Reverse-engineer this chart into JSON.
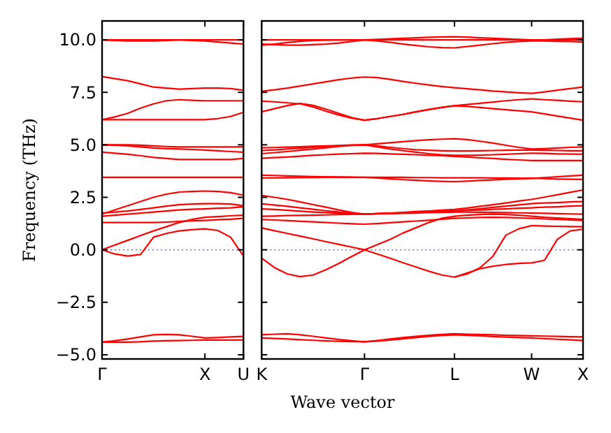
{
  "chart_data": [
    {
      "type": "line",
      "ylabel": "Frequency (THz)",
      "color": "#ff0000",
      "ylim": [
        -5.2,
        10.9
      ],
      "categories": [
        "Γ",
        null,
        null,
        null,
        null,
        null,
        null,
        null,
        "X",
        null,
        null,
        "U"
      ],
      "yticks": [
        {
          "value": -5,
          "label": "−5.0"
        },
        {
          "value": -2.5,
          "label": "−2.5"
        },
        {
          "value": 0,
          "label": "0.0"
        },
        {
          "value": 2.5,
          "label": "2.5"
        },
        {
          "value": 5,
          "label": "5.0"
        },
        {
          "value": 7.5,
          "label": "7.5"
        },
        {
          "value": 10,
          "label": "10.0"
        }
      ],
      "ref_lines": [
        {
          "axis": "y",
          "value": 0,
          "color": "#6b6bff",
          "line_style": "dotted"
        }
      ],
      "series": [
        {
          "values": [
            10,
            10,
            10,
            10,
            10,
            10,
            10,
            10,
            10,
            10,
            10,
            10
          ]
        },
        {
          "values": [
            10,
            9.97,
            9.95,
            9.95,
            9.95,
            9.97,
            10,
            9.97,
            9.95,
            9.9,
            9.85,
            9.8
          ]
        },
        {
          "values": [
            8.25,
            8.15,
            8.05,
            7.9,
            7.75,
            7.7,
            7.65,
            7.68,
            7.7,
            7.7,
            7.68,
            7.6
          ]
        },
        {
          "values": [
            6.2,
            6.33,
            6.5,
            6.75,
            6.95,
            7.1,
            7.15,
            7.12,
            7.1,
            7.1,
            7.1,
            7.1
          ]
        },
        {
          "values": [
            6.2,
            6.2,
            6.2,
            6.2,
            6.2,
            6.2,
            6.2,
            6.2,
            6.2,
            6.25,
            6.35,
            6.55
          ]
        },
        {
          "values": [
            5.0,
            5.0,
            5.0,
            4.98,
            4.95,
            4.92,
            4.9,
            4.9,
            4.9,
            4.9,
            4.9,
            4.9
          ]
        },
        {
          "values": [
            5.0,
            4.98,
            4.95,
            4.9,
            4.85,
            4.82,
            4.8,
            4.78,
            4.75,
            4.72,
            4.68,
            4.65
          ]
        },
        {
          "values": [
            4.65,
            4.6,
            4.55,
            4.48,
            4.4,
            4.35,
            4.3,
            4.3,
            4.3,
            4.3,
            4.3,
            4.35
          ]
        },
        {
          "values": [
            3.45,
            3.45,
            3.45,
            3.45,
            3.45,
            3.45,
            3.45,
            3.45,
            3.45,
            3.45,
            3.45,
            3.45
          ]
        },
        {
          "values": [
            1.7,
            1.9,
            2.1,
            2.3,
            2.5,
            2.65,
            2.75,
            2.78,
            2.8,
            2.78,
            2.72,
            2.6
          ]
        },
        {
          "values": [
            1.75,
            1.8,
            1.85,
            1.92,
            2.0,
            2.08,
            2.15,
            2.18,
            2.2,
            2.2,
            2.18,
            2.1
          ]
        },
        {
          "values": [
            1.6,
            1.65,
            1.7,
            1.75,
            1.8,
            1.85,
            1.9,
            1.93,
            1.95,
            1.98,
            2.0,
            2.05
          ]
        },
        {
          "values": [
            1.3,
            1.3,
            1.3,
            1.3,
            1.3,
            1.32,
            1.35,
            1.38,
            1.4,
            1.43,
            1.46,
            1.5
          ]
        },
        {
          "values": [
            0,
            0.23,
            0.45,
            0.68,
            0.9,
            1.1,
            1.3,
            1.45,
            1.55,
            1.58,
            1.62,
            1.65
          ]
        },
        {
          "values": [
            0,
            -0.2,
            -0.3,
            -0.22,
            0.6,
            0.78,
            0.9,
            0.96,
            1.0,
            0.92,
            0.6,
            -0.3
          ]
        },
        {
          "values": [
            -4.4,
            -4.33,
            -4.25,
            -4.15,
            -4.05,
            -4.03,
            -4.05,
            -4.12,
            -4.2,
            -4.18,
            -4.15,
            -4.12
          ]
        },
        {
          "values": [
            -4.4,
            -4.4,
            -4.4,
            -4.38,
            -4.35,
            -4.33,
            -4.32,
            -4.31,
            -4.3,
            -4.3,
            -4.3,
            -4.3
          ]
        }
      ]
    },
    {
      "type": "line",
      "xlabel": "Wave vector",
      "color": "#ff0000",
      "ylim": [
        -5.2,
        10.9
      ],
      "tick_labels": "x",
      "categories": [
        "K",
        null,
        null,
        null,
        null,
        null,
        null,
        null,
        "Γ",
        null,
        null,
        null,
        null,
        null,
        null,
        "L",
        null,
        null,
        null,
        null,
        null,
        "W",
        null,
        null,
        null,
        "X"
      ],
      "yticks": [
        {
          "value": -5,
          "label": null
        },
        {
          "value": -2.5,
          "label": null
        },
        {
          "value": 0,
          "label": null
        },
        {
          "value": 2.5,
          "label": null
        },
        {
          "value": 5,
          "label": null
        },
        {
          "value": 7.5,
          "label": null
        },
        {
          "value": 10,
          "label": null
        }
      ],
      "ref_lines": [
        {
          "axis": "y",
          "value": 0,
          "color": "#6b6bff",
          "line_style": "dotted"
        }
      ],
      "series": [
        {
          "values": [
            10,
            10,
            10,
            10,
            10,
            10,
            10,
            10,
            10,
            10,
            10,
            10,
            10,
            10,
            10,
            10,
            10,
            10,
            10,
            10,
            10,
            10,
            10,
            10,
            10,
            10
          ]
        },
        {
          "values": [
            9.8,
            9.77,
            9.75,
            9.75,
            9.77,
            9.8,
            9.85,
            9.92,
            10,
            10.02,
            10.05,
            10.07,
            10.1,
            10.12,
            10.14,
            10.15,
            10.13,
            10.1,
            10.07,
            10.05,
            10.02,
            10,
            10,
            10.03,
            10.06,
            10.08
          ]
        },
        {
          "values": [
            9.75,
            9.8,
            9.87,
            9.93,
            9.97,
            9.99,
            10,
            10,
            10,
            9.95,
            9.88,
            9.8,
            9.73,
            9.67,
            9.63,
            9.62,
            9.68,
            9.75,
            9.82,
            9.88,
            9.92,
            9.95,
            9.95,
            9.93,
            9.92,
            9.9
          ]
        },
        {
          "values": [
            7.55,
            7.62,
            7.7,
            7.8,
            7.9,
            8.0,
            8.1,
            8.18,
            8.23,
            8.2,
            8.12,
            8.02,
            7.93,
            7.85,
            7.78,
            7.72,
            7.67,
            7.62,
            7.56,
            7.52,
            7.48,
            7.45,
            7.52,
            7.6,
            7.68,
            7.75
          ]
        },
        {
          "values": [
            7.08,
            7.05,
            7.0,
            6.95,
            6.8,
            6.6,
            6.42,
            6.27,
            6.17,
            6.25,
            6.35,
            6.45,
            6.57,
            6.68,
            6.78,
            6.86,
            6.92,
            6.98,
            7.04,
            7.1,
            7.15,
            7.19,
            7.15,
            7.12,
            7.08,
            7.05
          ]
        },
        {
          "values": [
            6.57,
            6.72,
            6.87,
            6.97,
            6.88,
            6.7,
            6.5,
            6.3,
            6.17,
            6.25,
            6.35,
            6.45,
            6.57,
            6.68,
            6.78,
            6.86,
            6.83,
            6.78,
            6.72,
            6.67,
            6.62,
            6.57,
            6.47,
            6.37,
            6.27,
            6.17
          ]
        },
        {
          "values": [
            4.86,
            4.87,
            4.89,
            4.91,
            4.93,
            4.95,
            4.97,
            4.99,
            5.0,
            5.05,
            5.1,
            5.15,
            5.2,
            5.24,
            5.27,
            5.29,
            5.25,
            5.17,
            5.08,
            4.98,
            4.88,
            4.8,
            4.82,
            4.85,
            4.88,
            4.9
          ]
        },
        {
          "values": [
            4.73,
            4.76,
            4.8,
            4.84,
            4.88,
            4.92,
            4.95,
            4.98,
            5.0,
            4.95,
            4.88,
            4.82,
            4.77,
            4.74,
            4.72,
            4.71,
            4.71,
            4.72,
            4.73,
            4.74,
            4.75,
            4.75,
            4.74,
            4.73,
            4.72,
            4.72
          ]
        },
        {
          "values": [
            4.58,
            4.63,
            4.68,
            4.74,
            4.8,
            4.86,
            4.92,
            4.97,
            5.0,
            4.9,
            4.8,
            4.72,
            4.65,
            4.58,
            4.53,
            4.5,
            4.5,
            4.51,
            4.53,
            4.55,
            4.58,
            4.6,
            4.59,
            4.57,
            4.56,
            4.55
          ]
        },
        {
          "values": [
            4.36,
            4.39,
            4.42,
            4.46,
            4.5,
            4.53,
            4.56,
            4.58,
            4.6,
            4.59,
            4.57,
            4.55,
            4.53,
            4.5,
            4.48,
            4.45,
            4.42,
            4.38,
            4.35,
            4.31,
            4.28,
            4.25,
            4.25,
            4.25,
            4.25,
            4.25
          ]
        },
        {
          "values": [
            3.55,
            3.54,
            3.52,
            3.5,
            3.49,
            3.48,
            3.47,
            3.46,
            3.45,
            3.42,
            3.38,
            3.34,
            3.31,
            3.28,
            3.26,
            3.25,
            3.27,
            3.3,
            3.33,
            3.36,
            3.38,
            3.4,
            3.44,
            3.48,
            3.52,
            3.55
          ]
        },
        {
          "values": [
            3.42,
            3.43,
            3.43,
            3.44,
            3.44,
            3.45,
            3.45,
            3.45,
            3.45,
            3.45,
            3.45,
            3.45,
            3.44,
            3.44,
            3.43,
            3.43,
            3.43,
            3.43,
            3.42,
            3.42,
            3.41,
            3.41,
            3.39,
            3.37,
            3.36,
            3.35
          ]
        },
        {
          "values": [
            2.59,
            2.5,
            2.4,
            2.28,
            2.15,
            2.03,
            1.9,
            1.78,
            1.7,
            1.72,
            1.75,
            1.78,
            1.82,
            1.85,
            1.89,
            1.92,
            1.99,
            2.07,
            2.15,
            2.23,
            2.32,
            2.4,
            2.51,
            2.62,
            2.74,
            2.85
          ]
        },
        {
          "values": [
            2.19,
            2.13,
            2.07,
            2.0,
            1.93,
            1.86,
            1.8,
            1.74,
            1.7,
            1.72,
            1.74,
            1.76,
            1.78,
            1.8,
            1.83,
            1.85,
            1.9,
            1.96,
            2.02,
            2.08,
            2.14,
            2.2,
            2.23,
            2.25,
            2.28,
            2.3
          ]
        },
        {
          "values": [
            1.95,
            1.92,
            1.88,
            1.84,
            1.8,
            1.77,
            1.75,
            1.72,
            1.7,
            1.72,
            1.74,
            1.76,
            1.78,
            1.8,
            1.83,
            1.85,
            1.88,
            1.9,
            1.93,
            1.95,
            1.98,
            2.0,
            2.03,
            2.05,
            2.08,
            2.1
          ]
        },
        {
          "values": [
            1.6,
            1.61,
            1.63,
            1.64,
            1.65,
            1.66,
            1.68,
            1.69,
            1.7,
            1.71,
            1.72,
            1.74,
            1.75,
            1.77,
            1.78,
            1.8,
            1.8,
            1.79,
            1.78,
            1.77,
            1.76,
            1.75,
            1.74,
            1.72,
            1.71,
            1.7
          ]
        },
        {
          "values": [
            1.44,
            1.42,
            1.39,
            1.36,
            1.33,
            1.3,
            1.27,
            1.24,
            1.22,
            1.25,
            1.29,
            1.33,
            1.37,
            1.41,
            1.46,
            1.5,
            1.52,
            1.54,
            1.55,
            1.54,
            1.52,
            1.5,
            1.47,
            1.45,
            1.42,
            1.4
          ]
        },
        {
          "values": [
            1.04,
            0.91,
            0.78,
            0.65,
            0.52,
            0.39,
            0.26,
            0.13,
            0,
            0.25,
            0.5,
            0.8,
            1.05,
            1.3,
            1.5,
            1.6,
            1.65,
            1.68,
            1.7,
            1.68,
            1.65,
            1.6,
            1.55,
            1.52,
            1.48,
            1.45
          ]
        },
        {
          "values": [
            -0.4,
            -0.85,
            -1.15,
            -1.28,
            -1.2,
            -0.95,
            -0.65,
            -0.32,
            0,
            -0.2,
            -0.4,
            -0.62,
            -0.82,
            -1.02,
            -1.2,
            -1.3,
            -1.15,
            -0.85,
            -0.3,
            0.7,
            1.0,
            1.15,
            1.13,
            1.12,
            1.11,
            1.1
          ]
        },
        {
          "values": [
            null,
            null,
            null,
            null,
            null,
            null,
            null,
            null,
            null,
            null,
            null,
            null,
            null,
            null,
            null,
            -1.3,
            -1.1,
            -0.9,
            -0.78,
            -0.7,
            -0.65,
            -0.62,
            -0.5,
            0.5,
            0.9,
            0.98
          ]
        },
        {
          "values": [
            -4.05,
            -4.02,
            -4.0,
            -4.05,
            -4.12,
            -4.2,
            -4.27,
            -4.33,
            -4.38,
            -4.32,
            -4.25,
            -4.18,
            -4.12,
            -4.07,
            -4.03,
            -4.0,
            -4.02,
            -4.03,
            -4.05,
            -4.07,
            -4.08,
            -4.1,
            -4.11,
            -4.12,
            -4.14,
            -4.15
          ]
        },
        {
          "values": [
            -4.2,
            -4.22,
            -4.25,
            -4.28,
            -4.31,
            -4.34,
            -4.36,
            -4.37,
            -4.38,
            -4.35,
            -4.3,
            -4.24,
            -4.18,
            -4.12,
            -4.08,
            -4.05,
            -4.07,
            -4.1,
            -4.13,
            -4.16,
            -4.18,
            -4.2,
            -4.23,
            -4.26,
            -4.29,
            -4.32
          ]
        }
      ]
    }
  ]
}
